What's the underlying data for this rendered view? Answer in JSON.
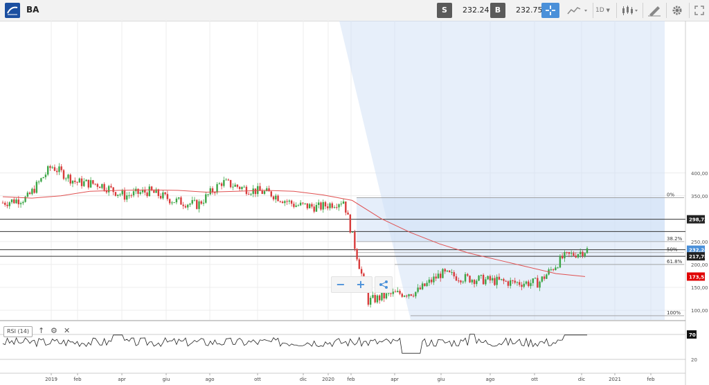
{
  "header": {
    "symbol": "BA",
    "sell_label": "S",
    "sell_price": "232.24",
    "buy_label": "B",
    "buy_price": "232.75",
    "timeframe": "1D"
  },
  "icons": {
    "logo": "chart-logo-icon",
    "crosshair": "crosshair-icon",
    "chart_type": "line-chart-icon",
    "candles": "candlestick-icon",
    "draw": "pencil-icon",
    "settings": "gear-icon"
  },
  "colors": {
    "accent": "#4a90d9",
    "moving_average": "#e05050",
    "fib_fill": "#cfe0f5",
    "price_tag": "#4a90d9",
    "line_tag": "#222222",
    "ma_tag": "#e00000"
  },
  "price_axis": {
    "ticks": [
      "400,00",
      "350,00",
      "250,00",
      "200,00",
      "150,00",
      "100,00"
    ],
    "tags": {
      "line1": "298,73",
      "current": "232,24",
      "line2": "217,78",
      "ma": "173,51"
    }
  },
  "fib": {
    "levels": [
      "0%",
      "38.2%",
      "50%",
      "61.8%",
      "100%"
    ]
  },
  "chart_data": {
    "type": "candlestick",
    "series": [
      {
        "values": [
          {
            "date": "2018-12",
            "close": 335
          },
          {
            "date": "2019-01",
            "close": 345
          },
          {
            "date": "2019-02",
            "close": 415
          },
          {
            "date": "2019-03",
            "close": 380
          },
          {
            "date": "2019-04",
            "close": 375
          },
          {
            "date": "2019-05",
            "close": 350
          },
          {
            "date": "2019-06",
            "close": 360
          },
          {
            "date": "2019-07",
            "close": 340
          },
          {
            "date": "2019-08",
            "close": 330
          },
          {
            "date": "2019-09",
            "close": 380
          },
          {
            "date": "2019-10",
            "close": 365
          },
          {
            "date": "2019-11",
            "close": 355
          },
          {
            "date": "2019-12",
            "close": 330
          },
          {
            "date": "2020-01",
            "close": 325
          },
          {
            "date": "2020-02",
            "close": 340
          },
          {
            "date": "2020-03",
            "close": 120
          },
          {
            "date": "2020-04",
            "close": 135
          },
          {
            "date": "2020-05",
            "close": 140
          },
          {
            "date": "2020-06",
            "close": 180
          },
          {
            "date": "2020-07",
            "close": 170
          },
          {
            "date": "2020-08",
            "close": 165
          },
          {
            "date": "2020-09",
            "close": 160
          },
          {
            "date": "2020-10",
            "close": 160
          },
          {
            "date": "2020-11",
            "close": 215
          },
          {
            "date": "2020-12",
            "close": 232
          }
        ]
      }
    ],
    "x_ticks": [
      "2019",
      "feb",
      "apr",
      "giu",
      "ago",
      "ott",
      "dic",
      "2020",
      "feb",
      "apr",
      "giu",
      "ago",
      "ott",
      "dic",
      "2021",
      "feb"
    ],
    "ylim": [
      75,
      420
    ],
    "indicator": {
      "label": "RSI (14)",
      "levels": [
        70,
        20
      ]
    }
  }
}
